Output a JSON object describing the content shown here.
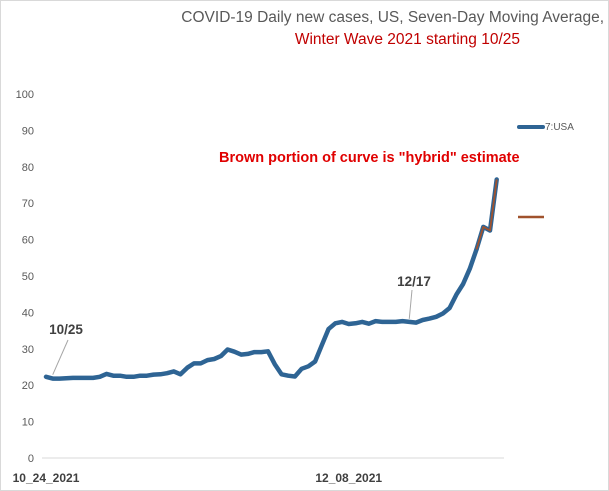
{
  "chart_data": {
    "type": "line",
    "title": "COVID-19 Daily new cases, US, Seven-Day Moving Average,",
    "subtitle": "Winter Wave 2021 starting 10/25",
    "xlabel": "",
    "ylabel": "",
    "ylim": [
      0,
      100
    ],
    "yticks": [
      0,
      10,
      20,
      30,
      40,
      50,
      60,
      70,
      80,
      90,
      100
    ],
    "x_tick_labels": [
      {
        "label": "10_24_2021",
        "index": 0
      },
      {
        "label": "12_08_2021",
        "index": 45
      }
    ],
    "grid": false,
    "legend": "right",
    "series": [
      {
        "name": "7:USA",
        "color": "#2e6494",
        "values": [
          22.3,
          21.8,
          21.8,
          21.9,
          22.0,
          22.0,
          22.0,
          22.0,
          22.3,
          23.1,
          22.6,
          22.6,
          22.3,
          22.3,
          22.6,
          22.6,
          22.9,
          23.0,
          23.3,
          23.8,
          23.0,
          24.8,
          26.0,
          26.0,
          26.9,
          27.2,
          28.0,
          29.8,
          29.2,
          28.4,
          28.6,
          29.1,
          29.1,
          29.3,
          25.8,
          23.0,
          22.6,
          22.4,
          24.5,
          25.2,
          26.5,
          31.0,
          35.4,
          37.0,
          37.4,
          36.8,
          37.0,
          37.4,
          36.9,
          37.6,
          37.4,
          37.4,
          37.4,
          37.6,
          37.4,
          37.2,
          37.9,
          38.3,
          38.8,
          39.7,
          41.2,
          44.9,
          47.8,
          52.0,
          57.3
        ]
      },
      {
        "name": "",
        "color": "#a0522d",
        "values": [
          57.3,
          63.5,
          62.5,
          76.5
        ],
        "start_index": 64
      }
    ],
    "annotations": [
      {
        "text": "10/25",
        "index": 1
      },
      {
        "text": "12/17",
        "index": 54
      },
      {
        "text": "Brown portion of curve is \"hybrid\" estimate"
      }
    ]
  }
}
